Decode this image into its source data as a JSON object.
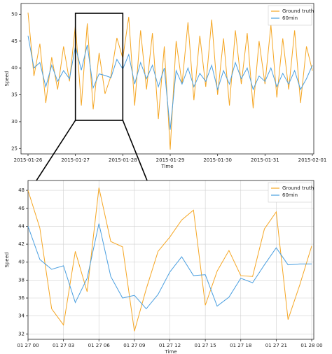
{
  "chart_data": [
    {
      "type": "line",
      "xlabel": "Time",
      "ylabel": "Speed",
      "xlim": [
        "2015-01-26",
        "2015-02-01"
      ],
      "xticks": [
        "2015-01-26",
        "2015-01-27",
        "2015-01-28",
        "2015-01-29",
        "2015-01-30",
        "2015-01-31",
        "2015-02-01"
      ],
      "ylim": [
        24,
        52
      ],
      "yticks": [
        25,
        30,
        35,
        40,
        45,
        50
      ],
      "grid": false,
      "legend": "upper right",
      "series": [
        {
          "name": "Ground truth",
          "color": "#f5a623",
          "values": [
            50.3,
            38.5,
            44.5,
            33.5,
            42.0,
            36.0,
            44.0,
            37.5,
            48.0,
            33.0,
            48.3,
            32.3,
            42.8,
            35.2,
            38.5,
            45.6,
            41.8,
            49.5,
            33.0,
            47.0,
            36.0,
            46.5,
            30.5,
            44.0,
            24.8,
            45.0,
            37.0,
            48.5,
            34.0,
            46.0,
            36.5,
            49.0,
            35.0,
            45.5,
            33.0,
            47.0,
            37.0,
            46.5,
            32.5,
            45.0,
            37.0,
            48.0,
            34.5,
            45.5,
            36.0,
            47.0,
            33.5,
            44.0,
            39.5
          ]
        },
        {
          "name": "60min",
          "color": "#4a9fe0",
          "values": [
            46.0,
            40.0,
            41.0,
            36.5,
            40.5,
            37.5,
            39.5,
            38.0,
            44.0,
            39.6,
            44.3,
            36.3,
            38.9,
            38.6,
            38.2,
            41.6,
            39.8,
            42.5,
            37.0,
            41.0,
            38.0,
            40.5,
            36.5,
            40.0,
            28.5,
            39.5,
            37.0,
            40.0,
            36.5,
            39.0,
            37.5,
            40.5,
            36.0,
            39.5,
            37.0,
            41.0,
            38.0,
            40.0,
            36.0,
            38.5,
            37.5,
            40.0,
            36.5,
            39.0,
            37.0,
            39.5,
            36.0,
            38.0,
            40.5
          ]
        }
      ]
    },
    {
      "type": "line",
      "xlabel": "Time",
      "ylabel": "Speed",
      "x": [
        "01 27 00",
        "01 27 01",
        "01 27 02",
        "01 27 03",
        "01 27 04",
        "01 27 05",
        "01 27 06",
        "01 27 07",
        "01 27 08",
        "01 27 09",
        "01 27 10",
        "01 27 11",
        "01 27 12",
        "01 27 13",
        "01 27 14",
        "01 27 15",
        "01 27 16",
        "01 27 17",
        "01 27 18",
        "01 27 19",
        "01 27 20",
        "01 27 21",
        "01 27 22",
        "01 27 23",
        "01 28 00"
      ],
      "xticks": [
        "01 27 00",
        "01 27 03",
        "01 27 06",
        "01 27 09",
        "01 27 12",
        "01 27 15",
        "01 27 18",
        "01 27 21",
        "01 28 00"
      ],
      "ylim": [
        31.4,
        49.1
      ],
      "yticks": [
        32,
        34,
        36,
        38,
        40,
        42,
        44,
        46,
        48
      ],
      "grid": true,
      "legend": "upper right",
      "series": [
        {
          "name": "Ground truth",
          "color": "#f5a623",
          "values": [
            48.0,
            43.8,
            34.8,
            33.0,
            41.2,
            36.7,
            48.3,
            42.3,
            41.7,
            32.3,
            37.0,
            41.2,
            42.8,
            44.7,
            45.8,
            35.2,
            39.0,
            41.3,
            38.5,
            38.4,
            43.7,
            45.6,
            33.6,
            37.5,
            41.8
          ]
        },
        {
          "name": "60min",
          "color": "#4a9fe0",
          "values": [
            44.0,
            40.3,
            39.2,
            39.6,
            35.5,
            38.2,
            44.3,
            38.4,
            36.0,
            36.3,
            34.8,
            36.4,
            38.9,
            40.6,
            38.5,
            38.6,
            35.1,
            36.1,
            38.2,
            37.7,
            39.7,
            41.6,
            39.7,
            39.8,
            39.8
          ]
        }
      ]
    }
  ]
}
